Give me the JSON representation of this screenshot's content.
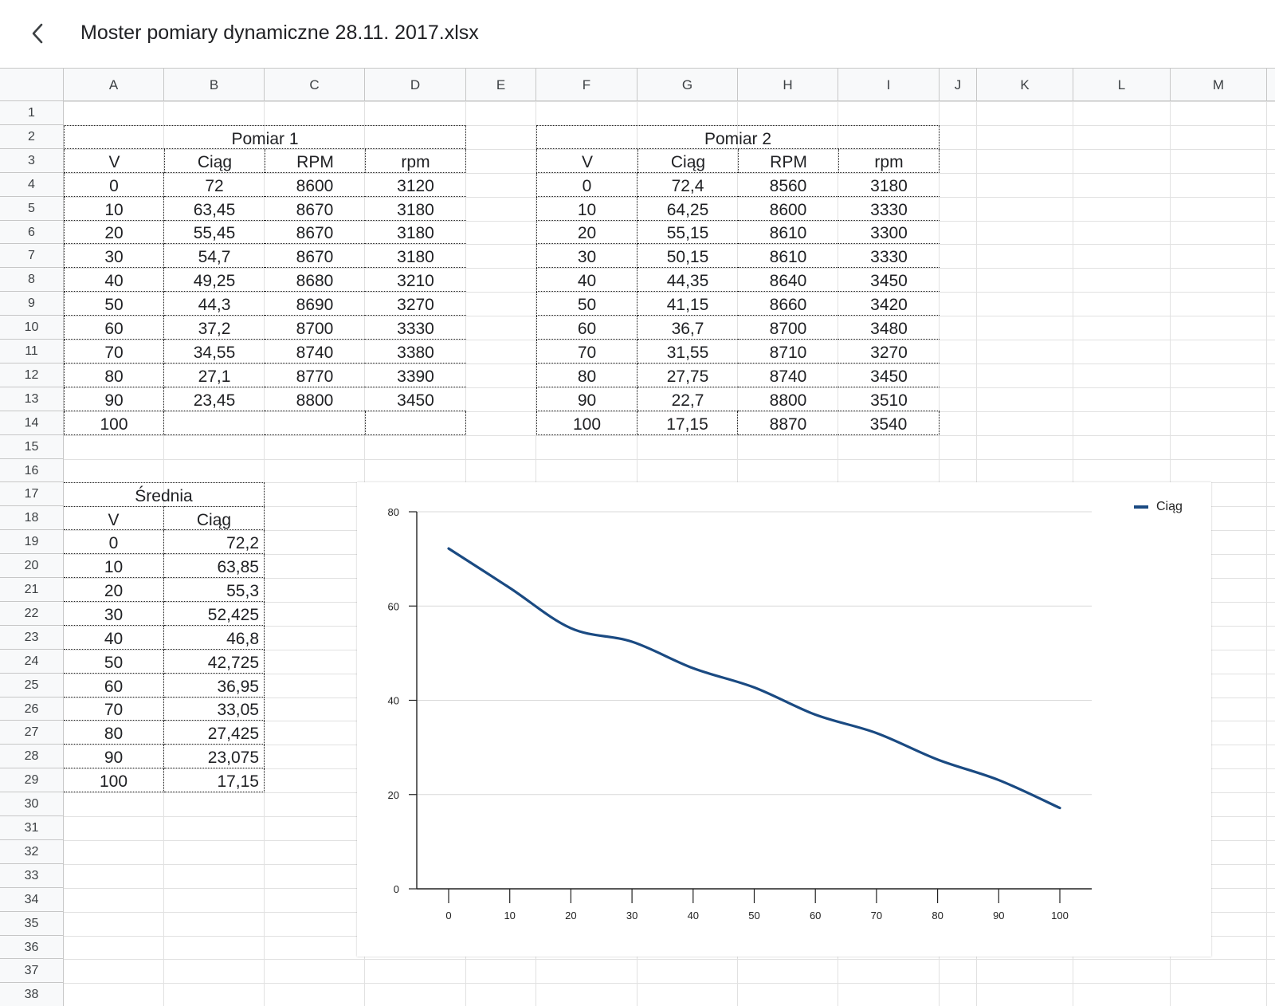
{
  "app": {
    "title": "Moster pomiary dynamiczne 28.11. 2017.xlsx",
    "back_icon": "chevron-left-icon"
  },
  "columns": [
    "A",
    "B",
    "C",
    "D",
    "E",
    "F",
    "G",
    "H",
    "I",
    "J",
    "K",
    "L",
    "M"
  ],
  "rows": [
    "1",
    "2",
    "3",
    "4",
    "5",
    "6",
    "7",
    "8",
    "9",
    "10",
    "11",
    "12",
    "13",
    "14",
    "15",
    "16",
    "17",
    "18",
    "19",
    "20",
    "21",
    "22",
    "23",
    "24",
    "25",
    "26",
    "27",
    "28",
    "29",
    "30",
    "31",
    "32",
    "33",
    "34",
    "35",
    "36",
    "37",
    "38"
  ],
  "pomiar1": {
    "title": "Pomiar 1",
    "headers": [
      "V",
      "Ciąg",
      "RPM",
      "rpm"
    ],
    "data": [
      [
        "0",
        "72",
        "8600",
        "3120"
      ],
      [
        "10",
        "63,45",
        "8670",
        "3180"
      ],
      [
        "20",
        "55,45",
        "8670",
        "3180"
      ],
      [
        "30",
        "54,7",
        "8670",
        "3180"
      ],
      [
        "40",
        "49,25",
        "8680",
        "3210"
      ],
      [
        "50",
        "44,3",
        "8690",
        "3270"
      ],
      [
        "60",
        "37,2",
        "8700",
        "3330"
      ],
      [
        "70",
        "34,55",
        "8740",
        "3380"
      ],
      [
        "80",
        "27,1",
        "8770",
        "3390"
      ],
      [
        "90",
        "23,45",
        "8800",
        "3450"
      ],
      [
        "100",
        "",
        "",
        ""
      ]
    ]
  },
  "pomiar2": {
    "title": "Pomiar 2",
    "headers": [
      "V",
      "Ciąg",
      "RPM",
      "rpm"
    ],
    "data": [
      [
        "0",
        "72,4",
        "8560",
        "3180"
      ],
      [
        "10",
        "64,25",
        "8600",
        "3330"
      ],
      [
        "20",
        "55,15",
        "8610",
        "3300"
      ],
      [
        "30",
        "50,15",
        "8610",
        "3330"
      ],
      [
        "40",
        "44,35",
        "8640",
        "3450"
      ],
      [
        "50",
        "41,15",
        "8660",
        "3420"
      ],
      [
        "60",
        "36,7",
        "8700",
        "3480"
      ],
      [
        "70",
        "31,55",
        "8710",
        "3270"
      ],
      [
        "80",
        "27,75",
        "8740",
        "3450"
      ],
      [
        "90",
        "22,7",
        "8800",
        "3510"
      ],
      [
        "100",
        "17,15",
        "8870",
        "3540"
      ]
    ]
  },
  "srednia": {
    "title": "Średnia",
    "headers": [
      "V",
      "Ciąg"
    ],
    "data": [
      [
        "0",
        "72,2"
      ],
      [
        "10",
        "63,85"
      ],
      [
        "20",
        "55,3"
      ],
      [
        "30",
        "52,425"
      ],
      [
        "40",
        "46,8"
      ],
      [
        "50",
        "42,725"
      ],
      [
        "60",
        "36,95"
      ],
      [
        "70",
        "33,05"
      ],
      [
        "80",
        "27,425"
      ],
      [
        "90",
        "23,075"
      ],
      [
        "100",
        "17,15"
      ]
    ]
  },
  "chart_data": {
    "type": "line",
    "title": "",
    "xlabel": "",
    "ylabel": "",
    "x": [
      0,
      10,
      20,
      30,
      40,
      50,
      60,
      70,
      80,
      90,
      100
    ],
    "x_ticks": [
      "0",
      "10",
      "20",
      "30",
      "40",
      "50",
      "60",
      "70",
      "80",
      "90",
      "100"
    ],
    "y_ticks": [
      "0",
      "20",
      "40",
      "60",
      "80"
    ],
    "ylim": [
      0,
      80
    ],
    "series": [
      {
        "name": "Ciąg",
        "color": "#1a4a82",
        "values": [
          72.2,
          63.85,
          55.3,
          52.425,
          46.8,
          42.725,
          36.95,
          33.05,
          27.425,
          23.075,
          17.15
        ]
      }
    ],
    "legend": "top-right",
    "grid": true
  }
}
